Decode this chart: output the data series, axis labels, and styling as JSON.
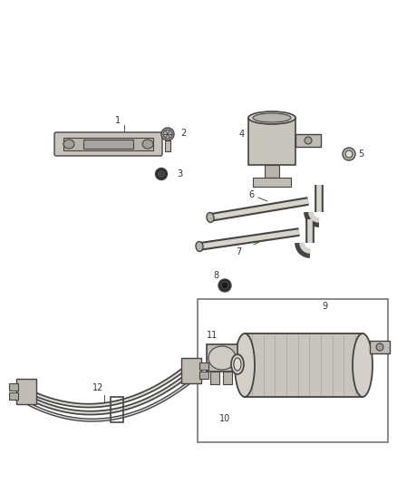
{
  "background_color": "#ffffff",
  "fig_width": 4.38,
  "fig_height": 5.33,
  "dpi": 100,
  "label_color": "#333333",
  "line_color": "#444444",
  "part_fill": "#d8d4cc",
  "label_fontsize": 7.0
}
